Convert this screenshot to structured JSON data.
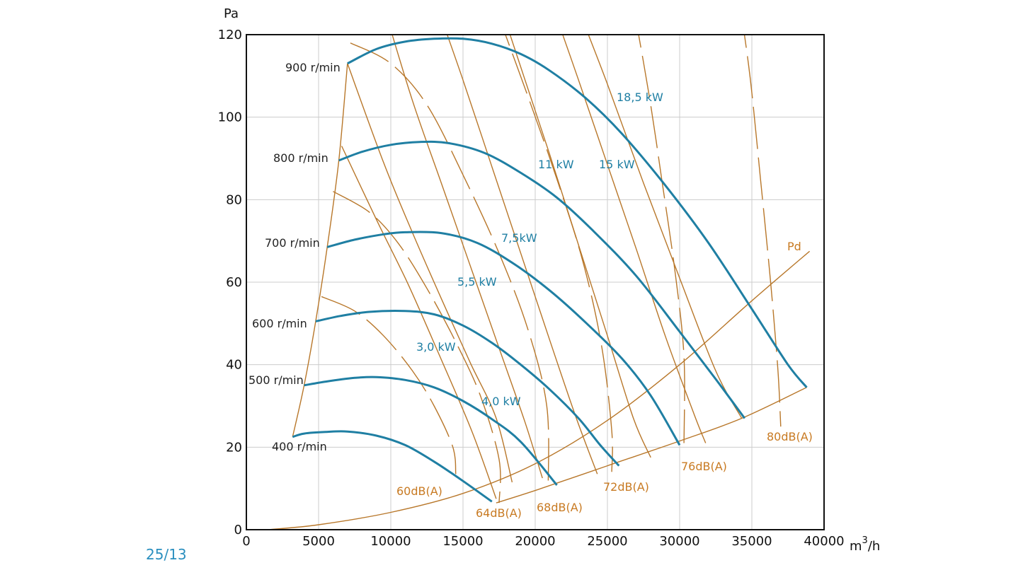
{
  "chart_data": {
    "type": "line",
    "title": "",
    "xlabel": "m³/h",
    "ylabel": "Pa",
    "xlim": [
      0,
      40000
    ],
    "ylim": [
      0,
      120
    ],
    "x_ticks": [
      "0",
      "5000",
      "10000",
      "15000",
      "20000",
      "25000",
      "30000",
      "35000",
      "40000"
    ],
    "y_ticks": [
      "0",
      "20",
      "40",
      "60",
      "80",
      "100",
      "120"
    ],
    "grid": true,
    "colors": {
      "speed": "#1f7fa3",
      "aux": "#b8772a",
      "db_label": "#c87a22",
      "axis": "#111111",
      "grid": "#cccccc"
    },
    "speed_curves": [
      {
        "name": "400 r/min",
        "points": [
          [
            3200,
            22.5
          ],
          [
            4000,
            23.3
          ],
          [
            5500,
            23.7
          ],
          [
            7000,
            23.8
          ],
          [
            9000,
            22.8
          ],
          [
            11000,
            20.5
          ],
          [
            13000,
            16.5
          ],
          [
            15000,
            11.8
          ],
          [
            17000,
            6.8
          ]
        ]
      },
      {
        "name": "500 r/min",
        "points": [
          [
            4000,
            35
          ],
          [
            5500,
            35.9
          ],
          [
            7500,
            36.8
          ],
          [
            9000,
            37
          ],
          [
            11000,
            36.3
          ],
          [
            13000,
            34.5
          ],
          [
            15000,
            31.2
          ],
          [
            17000,
            26.8
          ],
          [
            19000,
            21.3
          ],
          [
            21500,
            10.8
          ]
        ]
      },
      {
        "name": "600 r/min",
        "points": [
          [
            4800,
            50.5
          ],
          [
            6500,
            51.8
          ],
          [
            8500,
            52.8
          ],
          [
            11000,
            53
          ],
          [
            13000,
            52.2
          ],
          [
            15000,
            49.5
          ],
          [
            17000,
            45.3
          ],
          [
            19000,
            40
          ],
          [
            21000,
            34
          ],
          [
            23000,
            27
          ],
          [
            24500,
            20.5
          ],
          [
            25800,
            15.5
          ]
        ]
      },
      {
        "name": "700 r/min",
        "points": [
          [
            5600,
            68.5
          ],
          [
            7500,
            70.3
          ],
          [
            9500,
            71.6
          ],
          [
            11000,
            72.1
          ],
          [
            13500,
            71.9
          ],
          [
            16000,
            69.5
          ],
          [
            18500,
            64.5
          ],
          [
            21000,
            58
          ],
          [
            23500,
            50.2
          ],
          [
            26000,
            41.5
          ],
          [
            28000,
            32.5
          ],
          [
            30000,
            20.5
          ]
        ]
      },
      {
        "name": "800 r/min",
        "points": [
          [
            6400,
            89.5
          ],
          [
            8000,
            91.6
          ],
          [
            10000,
            93.3
          ],
          [
            12000,
            94
          ],
          [
            14000,
            93.7
          ],
          [
            16500,
            91.3
          ],
          [
            19000,
            86.5
          ],
          [
            21500,
            80.5
          ],
          [
            24000,
            72.5
          ],
          [
            27000,
            61.5
          ],
          [
            30000,
            48
          ],
          [
            32500,
            36.5
          ],
          [
            34500,
            27
          ]
        ]
      },
      {
        "name": "900 r/min",
        "points": [
          [
            7000,
            113
          ],
          [
            9000,
            116.5
          ],
          [
            11000,
            118.3
          ],
          [
            13000,
            119
          ],
          [
            15000,
            119
          ],
          [
            17000,
            117.8
          ],
          [
            19000,
            115.3
          ],
          [
            21000,
            111.3
          ],
          [
            23500,
            104.6
          ],
          [
            26000,
            96
          ],
          [
            29000,
            83.5
          ],
          [
            32000,
            69.5
          ],
          [
            35000,
            53.5
          ],
          [
            37500,
            40
          ],
          [
            38800,
            34.5
          ]
        ]
      }
    ],
    "power_lines": [
      {
        "name": "3,0 kW",
        "points": [
          [
            6600,
            93
          ],
          [
            9000,
            75.2
          ],
          [
            11200,
            59.5
          ],
          [
            13400,
            42
          ],
          [
            15600,
            24
          ],
          [
            17300,
            7.5
          ]
        ]
      },
      {
        "name": "4,0 kW",
        "points": [
          [
            7000,
            113
          ],
          [
            9500,
            89
          ],
          [
            11500,
            72
          ],
          [
            13500,
            56
          ],
          [
            15500,
            40.5
          ],
          [
            17300,
            27
          ],
          [
            18400,
            11.5
          ]
        ]
      },
      {
        "name": "5,5 kW",
        "points": [
          [
            9500,
            127
          ],
          [
            11500,
            104
          ],
          [
            13500,
            84
          ],
          [
            15500,
            64
          ],
          [
            17500,
            44
          ],
          [
            19300,
            26
          ],
          [
            20500,
            12.5
          ]
        ]
      },
      {
        "name": "7,5kW",
        "points": [
          [
            13200,
            127
          ],
          [
            15000,
            109
          ],
          [
            17000,
            88
          ],
          [
            19000,
            67
          ],
          [
            21000,
            46
          ],
          [
            22800,
            27.5
          ],
          [
            24300,
            13.5
          ]
        ]
      },
      {
        "name": "11 kW",
        "points": [
          [
            17600,
            127
          ],
          [
            19200,
            110
          ],
          [
            21000,
            91
          ],
          [
            23000,
            69
          ],
          [
            25000,
            47
          ],
          [
            26800,
            27
          ],
          [
            28000,
            17.5
          ]
        ]
      },
      {
        "name": "15 kW",
        "points": [
          [
            21200,
            127
          ],
          [
            23000,
            109
          ],
          [
            25000,
            88.5
          ],
          [
            27000,
            68
          ],
          [
            29000,
            47
          ],
          [
            31000,
            28
          ],
          [
            31800,
            21
          ]
        ]
      },
      {
        "name": "18,5 kW",
        "points": [
          [
            22900,
            127
          ],
          [
            25000,
            108
          ],
          [
            27500,
            84
          ],
          [
            30000,
            61
          ],
          [
            32500,
            38.5
          ],
          [
            34300,
            27
          ]
        ]
      }
    ],
    "db_lines": [
      {
        "name": "60dB(A)",
        "points": [
          [
            5200,
            56.5
          ],
          [
            7500,
            53
          ],
          [
            9500,
            47
          ],
          [
            11500,
            38.5
          ],
          [
            13000,
            30
          ],
          [
            14300,
            20
          ],
          [
            14500,
            13.5
          ]
        ]
      },
      {
        "name": "64dB(A)",
        "points": [
          [
            6000,
            82
          ],
          [
            8500,
            77
          ],
          [
            10500,
            69.5
          ],
          [
            12500,
            58.5
          ],
          [
            14500,
            45.5
          ],
          [
            16200,
            32.5
          ],
          [
            17500,
            17
          ],
          [
            17500,
            6.5
          ]
        ]
      },
      {
        "name": "68dB(A)",
        "points": [
          [
            7200,
            118
          ],
          [
            10000,
            113
          ],
          [
            12500,
            103
          ],
          [
            15000,
            86
          ],
          [
            17500,
            67
          ],
          [
            19500,
            48.5
          ],
          [
            20800,
            30
          ],
          [
            20900,
            10.5
          ]
        ]
      },
      {
        "name": "72dB(A)",
        "points": [
          [
            17200,
            127
          ],
          [
            19500,
            105
          ],
          [
            21500,
            85
          ],
          [
            23300,
            65
          ],
          [
            24600,
            44.5
          ],
          [
            25300,
            24
          ],
          [
            25300,
            14
          ]
        ]
      },
      {
        "name": "76dB(A)",
        "points": [
          [
            26800,
            127
          ],
          [
            27900,
            105
          ],
          [
            28800,
            84
          ],
          [
            29700,
            62
          ],
          [
            30300,
            42
          ],
          [
            30300,
            21
          ]
        ]
      },
      {
        "name": "80dB(A)",
        "points": [
          [
            34200,
            127
          ],
          [
            34900,
            109
          ],
          [
            35600,
            85
          ],
          [
            36300,
            60
          ],
          [
            36800,
            39
          ],
          [
            37000,
            25
          ]
        ]
      }
    ],
    "static_lines": [
      {
        "name": "",
        "points": [
          [
            3200,
            22.5
          ],
          [
            4000,
            35
          ],
          [
            4800,
            50.5
          ],
          [
            5600,
            68.5
          ],
          [
            6400,
            89.5
          ],
          [
            7000,
            113
          ]
        ]
      },
      {
        "name": "Pd",
        "points": [
          [
            1500,
            0
          ],
          [
            5000,
            1.2
          ],
          [
            10000,
            4.2
          ],
          [
            15000,
            8.8
          ],
          [
            20000,
            16
          ],
          [
            25000,
            26.5
          ],
          [
            30000,
            40
          ],
          [
            35000,
            55.5
          ],
          [
            39000,
            67.5
          ]
        ]
      },
      {
        "name": "",
        "points": [
          [
            17300,
            6.5
          ],
          [
            20000,
            9.5
          ],
          [
            25000,
            15.5
          ],
          [
            30000,
            21.5
          ],
          [
            34300,
            27
          ],
          [
            38800,
            34.5
          ]
        ]
      }
    ],
    "labels": {
      "rpm": [
        "900 r/min",
        "800 r/min",
        "700 r/min",
        "600 r/min",
        "500 r/min",
        "400 r/min"
      ],
      "kw": [
        "18,5 kW",
        "11 kW",
        "15 kW",
        "7,5kW",
        "5,5 kW",
        "3,0 kW",
        "4,0 kW"
      ],
      "db": [
        "60dB(A)",
        "64dB(A)",
        "68dB(A)",
        "72dB(A)",
        "76dB(A)",
        "80dB(A)"
      ],
      "pd": "Pd"
    },
    "footer_code": "25/13"
  }
}
